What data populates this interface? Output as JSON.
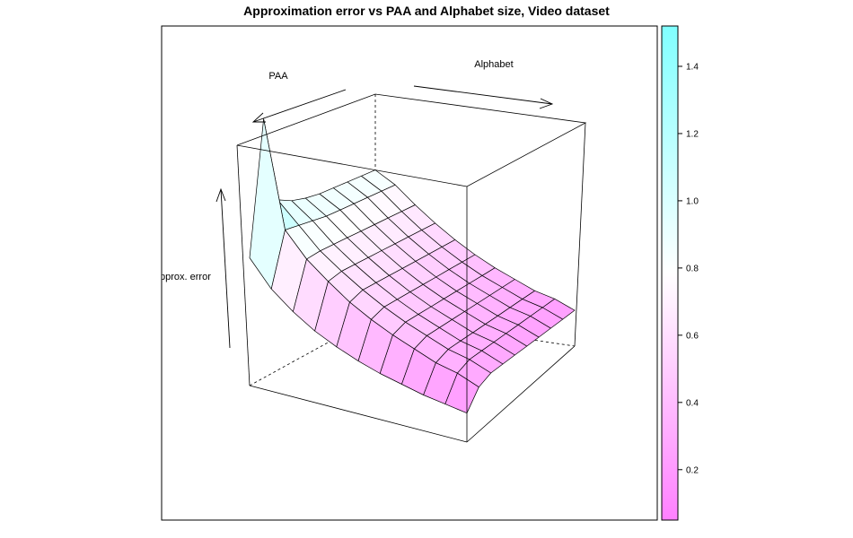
{
  "chart_data": {
    "type": "surface3d",
    "title": "Approximation error vs PAA and Alphabet size, Video dataset",
    "axis_labels": {
      "x": "PAA",
      "y": "Alphabet",
      "z": "Approx. error"
    },
    "z_clip_text": "pprox. error",
    "colorkey": {
      "ticks": [
        0.2,
        0.4,
        0.6,
        0.8,
        1.0,
        1.2,
        1.4
      ],
      "tick_labels": [
        "0.2",
        "0.4",
        "0.6",
        "0.8",
        "1.0",
        "1.2",
        "1.4"
      ],
      "range": [
        0.05,
        1.52
      ],
      "color_low": "#ff80ff",
      "color_mid": "#ffffff",
      "color_high": "#80ffff"
    },
    "grid": {
      "rows": 11,
      "cols": 10,
      "z": [
        [
          0.75,
          1.52,
          1.0,
          0.95,
          0.92,
          0.9,
          0.89,
          0.88,
          0.87,
          0.86
        ],
        [
          0.6,
          0.9,
          0.88,
          0.86,
          0.84,
          0.83,
          0.82,
          0.81,
          0.8,
          0.79
        ],
        [
          0.5,
          0.76,
          0.76,
          0.75,
          0.74,
          0.73,
          0.72,
          0.71,
          0.7,
          0.69
        ],
        [
          0.42,
          0.66,
          0.67,
          0.66,
          0.65,
          0.64,
          0.63,
          0.62,
          0.61,
          0.6
        ],
        [
          0.36,
          0.57,
          0.59,
          0.58,
          0.57,
          0.56,
          0.55,
          0.54,
          0.53,
          0.52
        ],
        [
          0.31,
          0.5,
          0.52,
          0.51,
          0.5,
          0.49,
          0.48,
          0.47,
          0.46,
          0.45
        ],
        [
          0.27,
          0.44,
          0.46,
          0.45,
          0.44,
          0.43,
          0.42,
          0.41,
          0.4,
          0.39
        ],
        [
          0.24,
          0.39,
          0.41,
          0.4,
          0.39,
          0.38,
          0.37,
          0.36,
          0.35,
          0.34
        ],
        [
          0.21,
          0.34,
          0.36,
          0.35,
          0.34,
          0.33,
          0.32,
          0.31,
          0.3,
          0.29
        ],
        [
          0.19,
          0.31,
          0.33,
          0.32,
          0.31,
          0.3,
          0.29,
          0.28,
          0.27,
          0.26
        ],
        [
          0.17,
          0.26,
          0.28,
          0.27,
          0.26,
          0.25,
          0.24,
          0.23,
          0.22,
          0.21
        ]
      ]
    }
  }
}
